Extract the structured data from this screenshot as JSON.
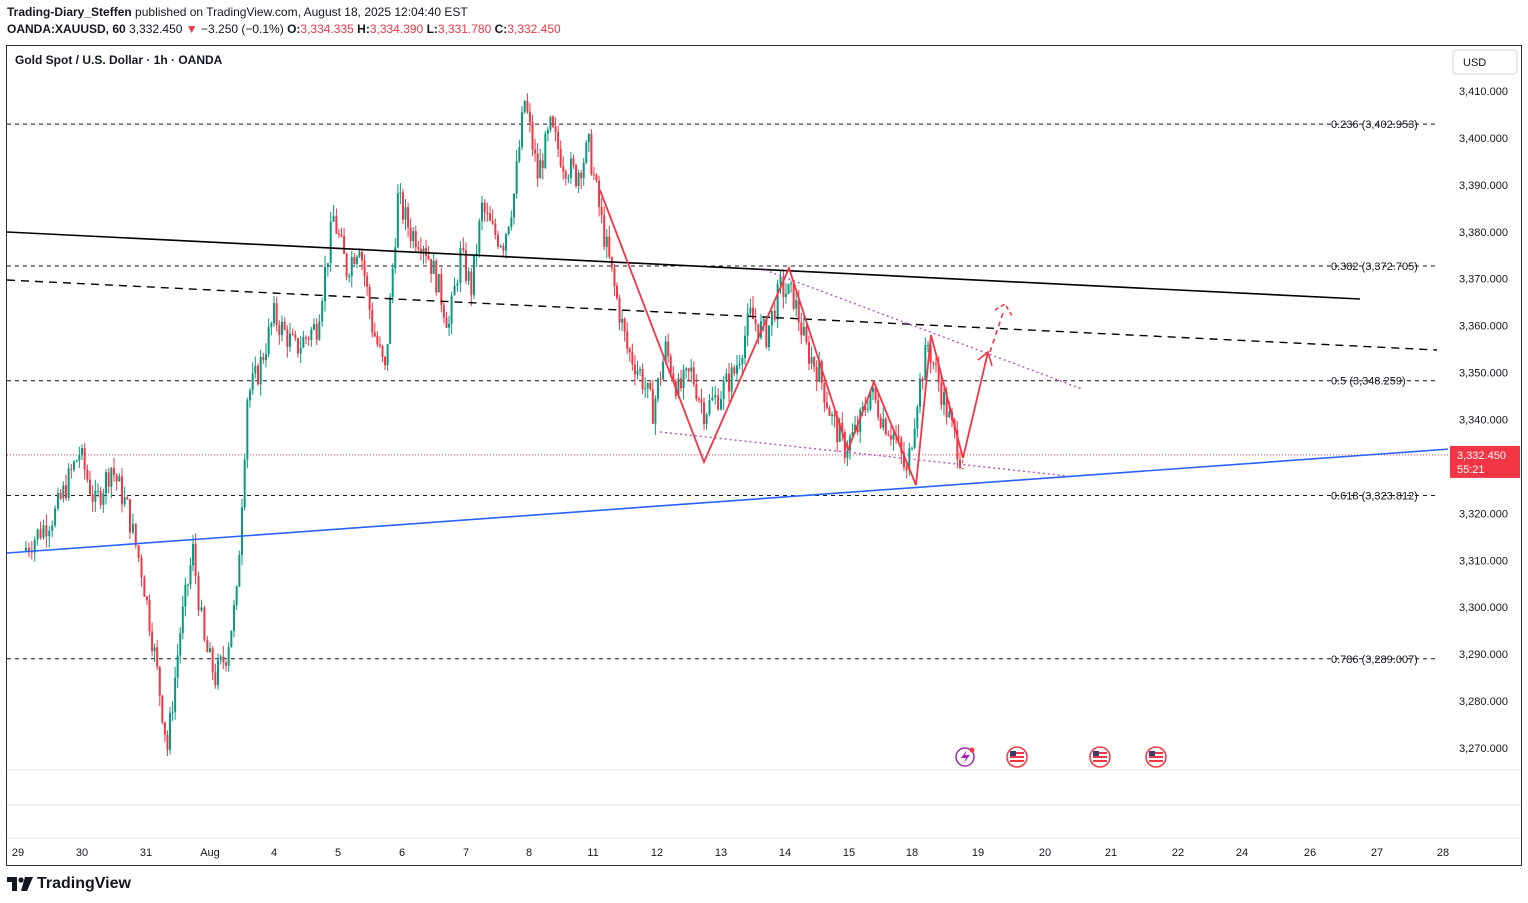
{
  "header": {
    "author": "Trading-Diary_Steffen",
    "published_text": "published on TradingView.com, August 18, 2025 12:04:40 EST",
    "symbol": "OANDA:XAUUSD, 60",
    "last_price": "3,332.450",
    "change_arrow": "▼",
    "change": "−3.250 (−0.1%)",
    "o_label": "O:",
    "o_value": "3,334.335",
    "h_label": "H:",
    "h_value": "3,334.390",
    "l_label": "L:",
    "l_value": "3,331.780",
    "c_label": "C:",
    "c_value": "3,332.450"
  },
  "chart_title": "Gold Spot / U.S. Dollar · 1h · OANDA",
  "currency_button": "USD",
  "footer_brand": "TradingView",
  "colors": {
    "up": "#089981",
    "down": "#f23645",
    "pattern": "#f23645",
    "blue_trend": "#2962ff",
    "black_trend": "#000000",
    "dotted": "#b454c4",
    "price_label_bg": "#f23645"
  },
  "chart_data": {
    "type": "candlestick",
    "title": "Gold Spot / U.S. Dollar · 1h · OANDA",
    "ylim": [
      3264,
      3419
    ],
    "y_ticks": [
      "3,270.000",
      "3,280.000",
      "3,290.000",
      "3,300.000",
      "3,310.000",
      "3,320.000",
      "3,330.000",
      "3,340.000",
      "3,350.000",
      "3,360.000",
      "3,370.000",
      "3,380.000",
      "3,390.000",
      "3,400.000",
      "3,410.000"
    ],
    "y_tick_values": [
      3270,
      3280,
      3290,
      3300,
      3310,
      3320,
      3330,
      3340,
      3350,
      3360,
      3370,
      3380,
      3390,
      3400,
      3410
    ],
    "x_ticks": [
      "29",
      "30",
      "31",
      "Aug",
      "4",
      "5",
      "6",
      "7",
      "8",
      "11",
      "12",
      "13",
      "14",
      "15",
      "18",
      "19",
      "20",
      "21",
      "22",
      "24",
      "26",
      "27",
      "28"
    ],
    "fib_levels": [
      {
        "label": "0.236 (3,402.953)",
        "value": 3402.953
      },
      {
        "label": "0.382 (3,372.705)",
        "value": 3372.705
      },
      {
        "label": "0.5 (3,348.259)",
        "value": 3348.259
      },
      {
        "label": "0.618 (3,323.812)",
        "value": 3323.812
      },
      {
        "label": "0.786 (3,289.007)",
        "value": 3289.007
      }
    ],
    "current_price": {
      "label": "3,332.450",
      "countdown": "55:21",
      "value": 3332.45
    },
    "price_path": [
      [
        "Jul 29",
        3312
      ],
      [
        "Jul 29",
        3320
      ],
      [
        "Jul 30",
        3333
      ],
      [
        "Jul 30",
        3322
      ],
      [
        "Jul 30",
        3330
      ],
      [
        "Jul 30",
        3321
      ],
      [
        "Jul 31",
        3308
      ],
      [
        "Jul 31",
        3290
      ],
      [
        "Jul 31",
        3270
      ],
      [
        "Jul 31",
        3295
      ],
      [
        "Jul 31",
        3312
      ],
      [
        "Aug 1",
        3292
      ],
      [
        "Aug 1",
        3285
      ],
      [
        "Aug 1",
        3290
      ],
      [
        "Aug 1",
        3302
      ],
      [
        "Aug 1",
        3345
      ],
      [
        "Aug 1",
        3350
      ],
      [
        "Aug 4",
        3362
      ],
      [
        "Aug 4",
        3355
      ],
      [
        "Aug 4",
        3360
      ],
      [
        "Aug 5",
        3383
      ],
      [
        "Aug 5",
        3372
      ],
      [
        "Aug 5",
        3378
      ],
      [
        "Aug 5",
        3360
      ],
      [
        "Aug 5",
        3350
      ],
      [
        "Aug 6",
        3387
      ],
      [
        "Aug 6",
        3380
      ],
      [
        "Aug 6",
        3378
      ],
      [
        "Aug 6",
        3370
      ],
      [
        "Aug 6",
        3360
      ],
      [
        "Aug 7",
        3375
      ],
      [
        "Aug 7",
        3368
      ],
      [
        "Aug 7",
        3385
      ],
      [
        "Aug 7",
        3380
      ],
      [
        "Aug 7",
        3378
      ],
      [
        "Aug 7",
        3388
      ],
      [
        "Aug 8",
        3408
      ],
      [
        "Aug 8",
        3392
      ],
      [
        "Aug 8",
        3402
      ],
      [
        "Aug 8",
        3395
      ],
      [
        "Aug 8",
        3392
      ],
      [
        "Aug 11",
        3398
      ],
      [
        "Aug 11",
        3382
      ],
      [
        "Aug 11",
        3368
      ],
      [
        "Aug 11",
        3355
      ],
      [
        "Aug 11",
        3350
      ],
      [
        "Aug 12",
        3342
      ],
      [
        "Aug 12",
        3355
      ],
      [
        "Aug 12",
        3346
      ],
      [
        "Aug 12",
        3350
      ],
      [
        "Aug 12",
        3342
      ],
      [
        "Aug 13",
        3345
      ],
      [
        "Aug 13",
        3350
      ],
      [
        "Aug 13",
        3362
      ],
      [
        "Aug 13",
        3358
      ],
      [
        "Aug 14",
        3368
      ],
      [
        "Aug 14",
        3366
      ],
      [
        "Aug 14",
        3355
      ],
      [
        "Aug 14",
        3350
      ],
      [
        "Aug 14",
        3340
      ],
      [
        "Aug 15",
        3334
      ],
      [
        "Aug 15",
        3338
      ],
      [
        "Aug 15",
        3346
      ],
      [
        "Aug 15",
        3340
      ],
      [
        "Aug 15",
        3336
      ],
      [
        "Aug 18",
        3328
      ],
      [
        "Aug 18",
        3345
      ],
      [
        "Aug 18",
        3356
      ],
      [
        "Aug 18",
        3348
      ],
      [
        "Aug 18",
        3340
      ],
      [
        "Aug 18",
        3332.45
      ]
    ],
    "y_label": "USD"
  },
  "events": {
    "flash_icon": "flash-event-icon",
    "us_flags": [
      "us-flag-icon",
      "us-flag-icon",
      "us-flag-icon"
    ]
  }
}
